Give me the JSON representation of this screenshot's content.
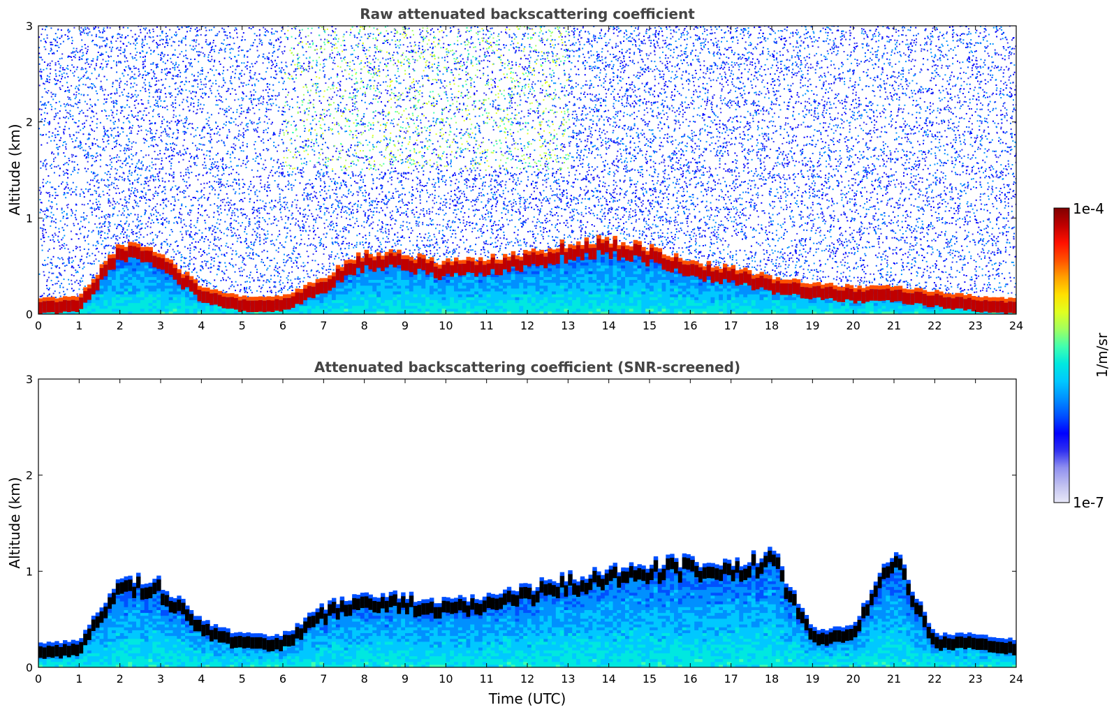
{
  "chart_data": [
    {
      "type": "heatmap",
      "title": "Raw attenuated backscattering coefficient",
      "xlabel": "",
      "ylabel": "Altitude (km)",
      "xlim": [
        0,
        24
      ],
      "ylim": [
        0,
        3
      ],
      "xticks": [
        "0",
        "1",
        "2",
        "3",
        "4",
        "5",
        "6",
        "7",
        "8",
        "9",
        "10",
        "11",
        "12",
        "13",
        "14",
        "15",
        "16",
        "17",
        "18",
        "19",
        "20",
        "21",
        "22",
        "23",
        "24"
      ],
      "yticks": [
        "0",
        "1",
        "2",
        "3"
      ],
      "boundary_layer_top_km": {
        "time_utc": [
          0,
          1,
          2,
          3,
          4,
          5,
          6,
          7,
          8,
          9,
          10,
          11,
          12,
          13,
          14,
          15,
          16,
          17,
          18,
          19,
          20,
          21,
          22,
          23,
          24
        ],
        "altitude_km": [
          0.12,
          0.15,
          0.7,
          0.6,
          0.25,
          0.15,
          0.15,
          0.35,
          0.6,
          0.6,
          0.5,
          0.55,
          0.6,
          0.7,
          0.75,
          0.65,
          0.5,
          0.45,
          0.35,
          0.28,
          0.25,
          0.25,
          0.2,
          0.15,
          0.12
        ]
      },
      "noise_region": "signal extends to top of plot with noisy scatter",
      "grid": false
    },
    {
      "type": "heatmap",
      "title": "Attenuated backscattering coefficient (SNR-screened)",
      "xlabel": "Time (UTC)",
      "ylabel": "Altitude (km)",
      "xlim": [
        0,
        24
      ],
      "ylim": [
        0,
        3
      ],
      "xticks": [
        "0",
        "1",
        "2",
        "3",
        "4",
        "5",
        "6",
        "7",
        "8",
        "9",
        "10",
        "11",
        "12",
        "13",
        "14",
        "15",
        "16",
        "17",
        "18",
        "19",
        "20",
        "21",
        "22",
        "23",
        "24"
      ],
      "yticks": [
        "0",
        "1",
        "2",
        "3"
      ],
      "signal_top_km": {
        "time_utc": [
          0,
          1,
          2,
          3,
          4,
          5,
          6,
          7,
          8,
          9,
          10,
          11,
          12,
          13,
          14,
          15,
          16,
          17,
          18,
          19,
          20,
          21,
          22,
          23,
          24
        ],
        "altitude_km": [
          0.2,
          0.25,
          0.9,
          0.85,
          0.45,
          0.3,
          0.3,
          0.6,
          0.75,
          0.7,
          0.65,
          0.7,
          0.8,
          0.9,
          1.0,
          1.05,
          1.1,
          1.0,
          1.2,
          0.35,
          0.4,
          1.2,
          0.3,
          0.3,
          0.25
        ]
      },
      "grid": false
    }
  ],
  "colorbar": {
    "label": "1/m/sr",
    "max_label": "1e-4",
    "min_label": "1e-7",
    "scale": "log",
    "colors": [
      "#e8e8f8",
      "#c0c0f0",
      "#9090f0",
      "#3030f0",
      "#0000ff",
      "#0050ff",
      "#0090ff",
      "#00c8ff",
      "#00e8e0",
      "#40ffb0",
      "#a0ff60",
      "#e0ff20",
      "#ffe000",
      "#ffa000",
      "#ff5000",
      "#ff1000",
      "#c00000",
      "#800000"
    ]
  },
  "colors": {
    "title": "#444444",
    "screened_peak": "#000000"
  }
}
